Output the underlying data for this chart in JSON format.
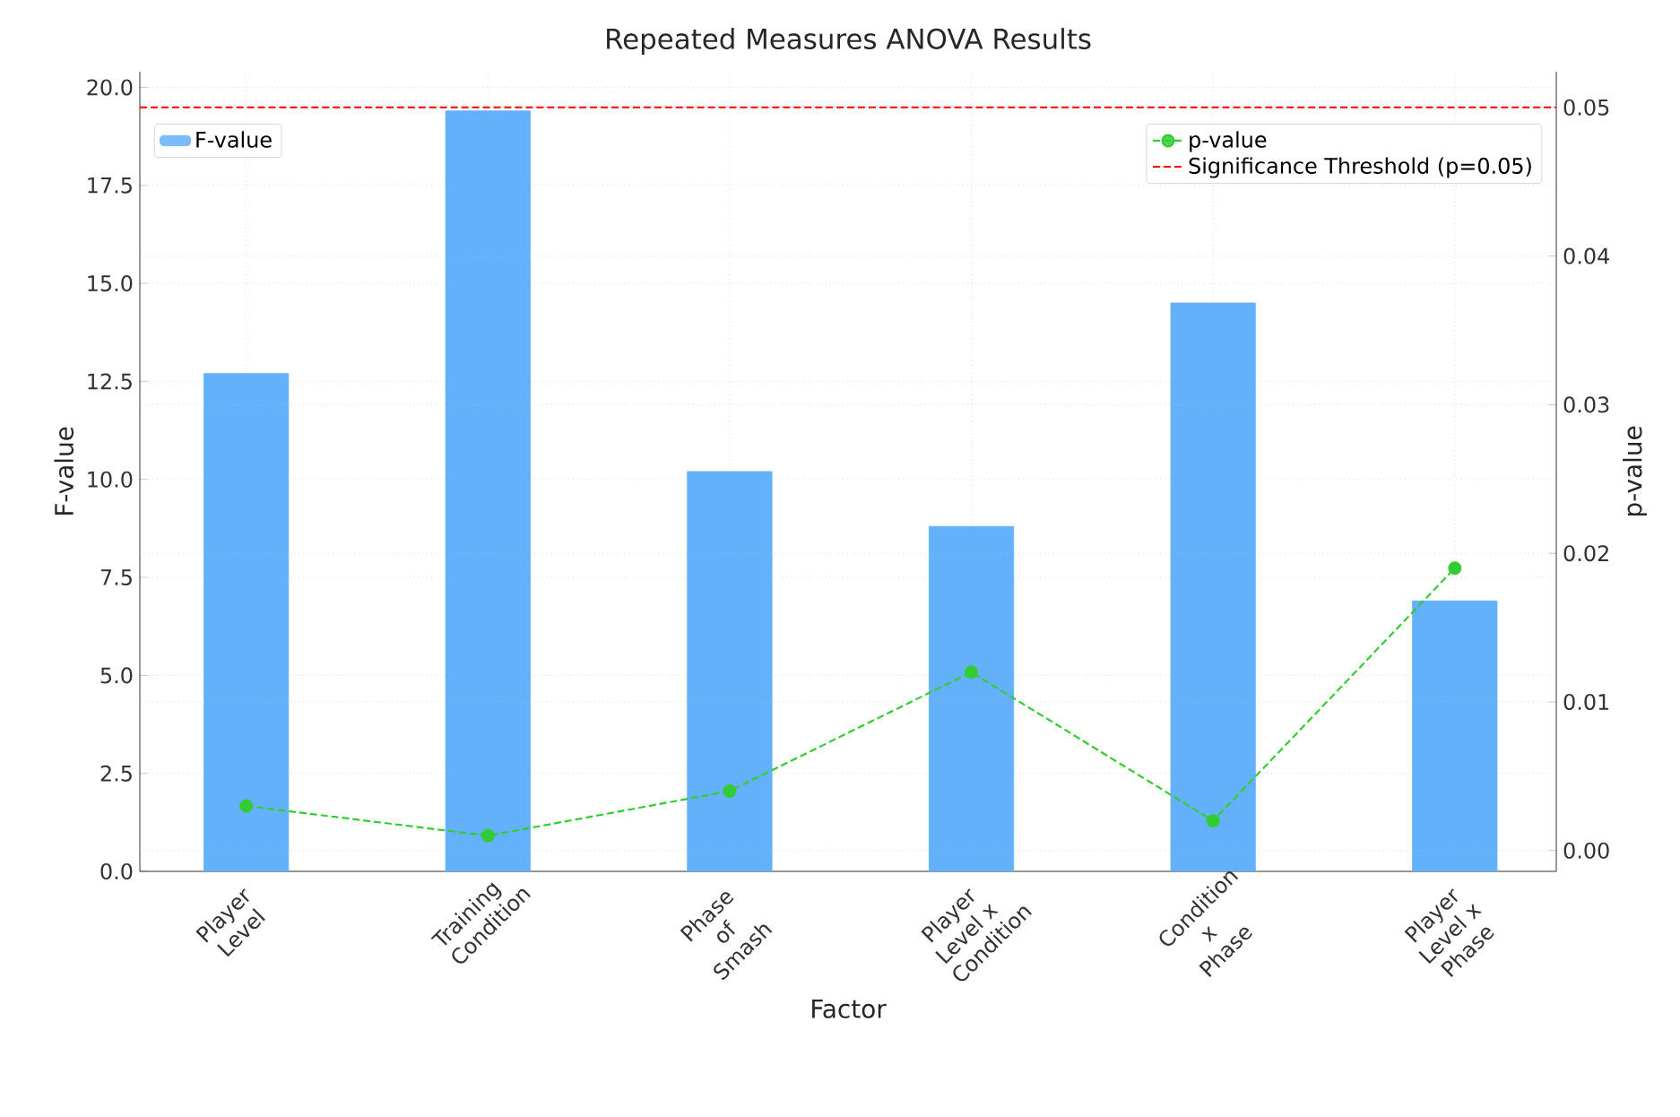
{
  "chart_data": {
    "type": "bar",
    "title": "Repeated Measures ANOVA Results",
    "xlabel": "Factor",
    "ylabel": "F-value",
    "y2label": "p-value",
    "categories": [
      "Player Level",
      "Training Condition",
      "Phase of Smash",
      "Player Level x Condition",
      "Condition x Phase",
      "Player Level x Phase"
    ],
    "series": [
      {
        "name": "F-value",
        "color": "#63b0fb",
        "values": [
          12.7,
          19.4,
          10.2,
          8.8,
          14.5,
          6.9
        ]
      },
      {
        "name": "p-value",
        "type": "line",
        "axis": "y2",
        "color": "#33cc33",
        "marker": "circle",
        "line_style": "dashed",
        "values": [
          0.003,
          0.001,
          0.004,
          0.012,
          0.002,
          0.019
        ]
      }
    ],
    "ylim": [
      0,
      20.4
    ],
    "yticks": [
      {
        "value": 0,
        "label": "0.0"
      },
      {
        "value": 2.5,
        "label": "2.5"
      },
      {
        "value": 5,
        "label": "5.0"
      },
      {
        "value": 7.5,
        "label": "7.5"
      },
      {
        "value": 10,
        "label": "10.0"
      },
      {
        "value": 12.5,
        "label": "12.5"
      },
      {
        "value": 15,
        "label": "15.0"
      },
      {
        "value": 17.5,
        "label": "17.5"
      },
      {
        "value": 20,
        "label": "20.0"
      }
    ],
    "y2lim": [
      -0.0014,
      0.0524
    ],
    "y2ticks": [
      {
        "value": 0,
        "label": "0.00"
      },
      {
        "value": 0.01,
        "label": "0.01"
      },
      {
        "value": 0.02,
        "label": "0.02"
      },
      {
        "value": 0.03,
        "label": "0.03"
      },
      {
        "value": 0.04,
        "label": "0.04"
      },
      {
        "value": 0.05,
        "label": "0.05"
      }
    ],
    "ref_lines": [
      {
        "axis": "y2",
        "value": 0.05,
        "label": "Significance Threshold (p=0.05)",
        "color": "#ff0000",
        "line_style": "dashed"
      }
    ],
    "grid": true,
    "legend": "top"
  }
}
